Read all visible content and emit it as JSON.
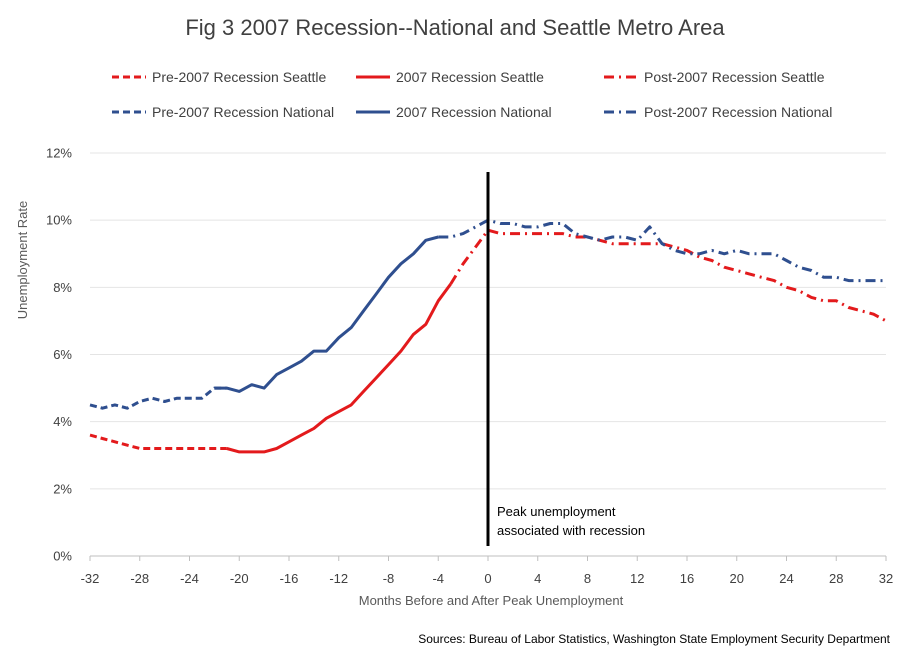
{
  "chart_data": {
    "type": "line",
    "title": "Fig 3 2007 Recession--National and Seattle Metro Area",
    "xlabel": "Months Before and After Peak Unemployment",
    "ylabel": "Unemployment Rate",
    "xlim": [
      -32,
      32
    ],
    "ylim": [
      0,
      0.12
    ],
    "x_ticks": [
      "-32",
      "-28",
      "-24",
      "-20",
      "-16",
      "-12",
      "-8",
      "-4",
      "0",
      "4",
      "8",
      "12",
      "16",
      "20",
      "24",
      "28",
      "32"
    ],
    "y_ticks": [
      "0%",
      "2%",
      "4%",
      "6%",
      "8%",
      "10%",
      "12%"
    ],
    "grid": "horizontal",
    "legend_position": "top",
    "colors": {
      "seattle": "#e31a1c",
      "national": "#2f4f8f",
      "marker_line": "#000000"
    },
    "series": [
      {
        "name": "Pre-2007 Recession Seattle",
        "group": "seattle",
        "style": "dashed",
        "x": [
          -32,
          -31,
          -30,
          -29,
          -28,
          -27,
          -26,
          -25,
          -24,
          -23,
          -22,
          -21
        ],
        "values": [
          3.6,
          3.5,
          3.4,
          3.3,
          3.2,
          3.2,
          3.2,
          3.2,
          3.2,
          3.2,
          3.2,
          3.2
        ]
      },
      {
        "name": "2007 Recession Seattle",
        "group": "seattle",
        "style": "solid",
        "x": [
          -21,
          -20,
          -19,
          -18,
          -17,
          -16,
          -15,
          -14,
          -13,
          -12,
          -11,
          -10,
          -9,
          -8,
          -7,
          -6,
          -5,
          -4,
          -3
        ],
        "values": [
          3.2,
          3.1,
          3.1,
          3.1,
          3.2,
          3.4,
          3.6,
          3.8,
          4.1,
          4.3,
          4.5,
          4.9,
          5.3,
          5.7,
          6.1,
          6.6,
          6.9,
          7.6,
          8.1
        ]
      },
      {
        "name": "Post-2007 Recession Seattle",
        "group": "seattle",
        "style": "dashdot",
        "x": [
          -3,
          -2,
          -1,
          0,
          1,
          2,
          3,
          4,
          5,
          6,
          7,
          8,
          9,
          10,
          11,
          12,
          13,
          14,
          15,
          16,
          17,
          18,
          19,
          20,
          21,
          22,
          23,
          24,
          25,
          26,
          27,
          28,
          29,
          30,
          31,
          32
        ],
        "values": [
          8.1,
          8.7,
          9.2,
          9.7,
          9.6,
          9.6,
          9.6,
          9.6,
          9.6,
          9.6,
          9.5,
          9.5,
          9.4,
          9.3,
          9.3,
          9.3,
          9.3,
          9.3,
          9.2,
          9.1,
          8.9,
          8.8,
          8.6,
          8.5,
          8.4,
          8.3,
          8.2,
          8.0,
          7.9,
          7.7,
          7.6,
          7.6,
          7.4,
          7.3,
          7.2,
          7.0
        ]
      },
      {
        "name": "Pre-2007 Recession National",
        "group": "national",
        "style": "dashed",
        "x": [
          -32,
          -31,
          -30,
          -29,
          -28,
          -27,
          -26,
          -25,
          -24,
          -23,
          -22,
          -21
        ],
        "values": [
          4.5,
          4.4,
          4.5,
          4.4,
          4.6,
          4.7,
          4.6,
          4.7,
          4.7,
          4.7,
          5.0,
          5.0
        ]
      },
      {
        "name": "2007 Recession National",
        "group": "national",
        "style": "solid",
        "x": [
          -22,
          -21,
          -20,
          -19,
          -18,
          -17,
          -16,
          -15,
          -14,
          -13,
          -12,
          -11,
          -10,
          -9,
          -8,
          -7,
          -6,
          -5,
          -4
        ],
        "values": [
          5.0,
          5.0,
          4.9,
          5.1,
          5.0,
          5.4,
          5.6,
          5.8,
          6.1,
          6.1,
          6.5,
          6.8,
          7.3,
          7.8,
          8.3,
          8.7,
          9.0,
          9.4,
          9.5
        ]
      },
      {
        "name": "Post-2007 Recession National",
        "group": "national",
        "style": "dashdot",
        "x": [
          -4,
          -3,
          -2,
          -1,
          0,
          1,
          2,
          3,
          4,
          5,
          6,
          7,
          8,
          9,
          10,
          11,
          12,
          13,
          14,
          15,
          16,
          17,
          18,
          19,
          20,
          21,
          22,
          23,
          24,
          25,
          26,
          27,
          28,
          29,
          30,
          31,
          32
        ],
        "values": [
          9.5,
          9.5,
          9.6,
          9.8,
          10.0,
          9.9,
          9.9,
          9.8,
          9.8,
          9.9,
          9.9,
          9.6,
          9.5,
          9.4,
          9.5,
          9.5,
          9.4,
          9.8,
          9.3,
          9.1,
          9.0,
          9.0,
          9.1,
          9.0,
          9.1,
          9.0,
          9.0,
          9.0,
          8.8,
          8.6,
          8.5,
          8.3,
          8.3,
          8.2,
          8.2,
          8.2,
          8.2
        ]
      }
    ],
    "annotation": {
      "x": 0,
      "lines": [
        "Peak unemployment",
        "associated with recession"
      ]
    },
    "source": "Sources: Bureau of Labor Statistics, Washington State Employment Security Department"
  }
}
